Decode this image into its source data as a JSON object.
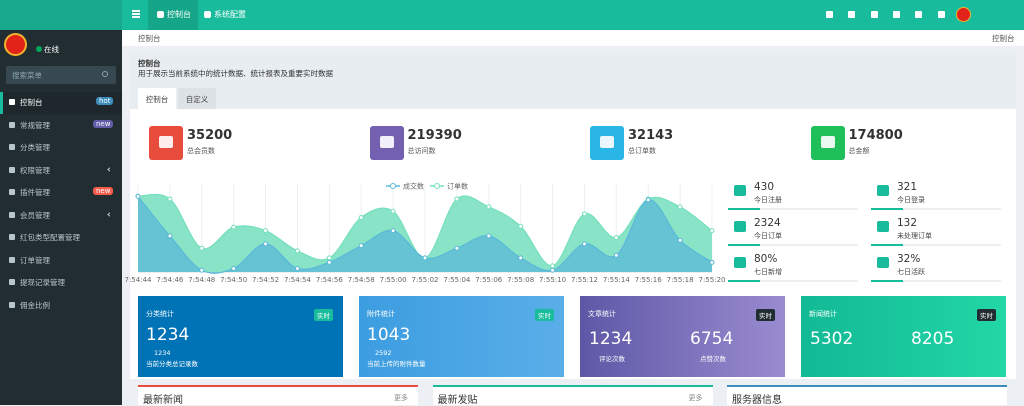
{
  "header": {
    "tabs": [
      "控制台",
      "系统配置"
    ]
  },
  "sidebar": {
    "status": "在线",
    "search_placeholder": "搜索菜单",
    "menu": [
      {
        "label": "控制台",
        "badge": "hot"
      },
      {
        "label": "常规管理",
        "badge": "new"
      },
      {
        "label": "分类管理"
      },
      {
        "label": "权限管理"
      },
      {
        "label": "插件管理",
        "badge": "new"
      },
      {
        "label": "会员管理"
      },
      {
        "label": "红包类型配置管理"
      },
      {
        "label": "订单管理"
      },
      {
        "label": "提现记录管理"
      },
      {
        "label": "佣金比例"
      }
    ]
  },
  "breadcrumb": {
    "left": "控制台",
    "right": "控制台"
  },
  "panel": {
    "title": "控制台",
    "description": "用于展示当前系统中的统计数据、统计报表及重要实时数据",
    "tabs": [
      "控制台",
      "自定义"
    ]
  },
  "stats": [
    {
      "value": 35200,
      "label": "总会员数",
      "color": "#e74c3c"
    },
    {
      "value": 219390,
      "label": "总访问数",
      "color": "#7460b1"
    },
    {
      "value": 32143,
      "label": "总订单数",
      "color": "#29b6e6"
    },
    {
      "value": 174800,
      "label": "总金额",
      "color": "#1fbf5a"
    }
  ],
  "chart_data": {
    "type": "area",
    "categories": [
      "7:54:44",
      "7:54:46",
      "7:54:48",
      "7:54:50",
      "7:54:52",
      "7:54:54",
      "7:54:56",
      "7:54:58",
      "7:55:00",
      "7:55:02",
      "7:55:04",
      "7:55:06",
      "7:55:08",
      "7:55:10",
      "7:55:12",
      "7:55:14",
      "7:55:16",
      "7:55:18",
      "7:55:20"
    ],
    "series": [
      {
        "name": "订单数",
        "color": "#74dfbd",
        "values": [
          86,
          83,
          27,
          51,
          47,
          24,
          16,
          62,
          69,
          16,
          83,
          74,
          52,
          7,
          66,
          39,
          83,
          74,
          47
        ]
      },
      {
        "name": "成交数",
        "color": "#5ab8d8",
        "values": [
          86,
          41,
          2,
          4,
          32,
          4,
          11,
          30,
          47,
          16,
          27,
          41,
          16,
          2,
          32,
          19,
          82,
          36,
          11
        ]
      }
    ],
    "ylim": [
      0,
      100
    ]
  },
  "mini_stats": [
    {
      "value": 430,
      "label": "今日注册"
    },
    {
      "value": 321,
      "label": "今日登录"
    },
    {
      "value": 2324,
      "label": "今日订单"
    },
    {
      "value": 132,
      "label": "未处理订单"
    },
    {
      "value": "80%",
      "label": "七日新增"
    },
    {
      "value": "32%",
      "label": "七日活跃"
    }
  ],
  "boxes": [
    {
      "title": "分类统计",
      "tag": "实时",
      "value": 1234,
      "sub_value": 1234,
      "note": "当前分类总记录数"
    },
    {
      "title": "附件统计",
      "tag": "实时",
      "value": 1043,
      "sub_value": 2592,
      "note": "当前上传的附件数量"
    },
    {
      "title": "文章统计",
      "tag": "实时",
      "items": [
        {
          "value": 1234,
          "label": "评论次数"
        },
        {
          "value": 6754,
          "label": "点赞次数"
        }
      ]
    },
    {
      "title": "新闻统计",
      "tag": "实时",
      "items": [
        {
          "value": 5302
        },
        {
          "value": 8205
        }
      ]
    }
  ],
  "bottom_panels": [
    {
      "title": "最新新闻",
      "more": "更多"
    },
    {
      "title": "最新发贴",
      "more": "更多"
    },
    {
      "title": "服务器信息"
    }
  ]
}
